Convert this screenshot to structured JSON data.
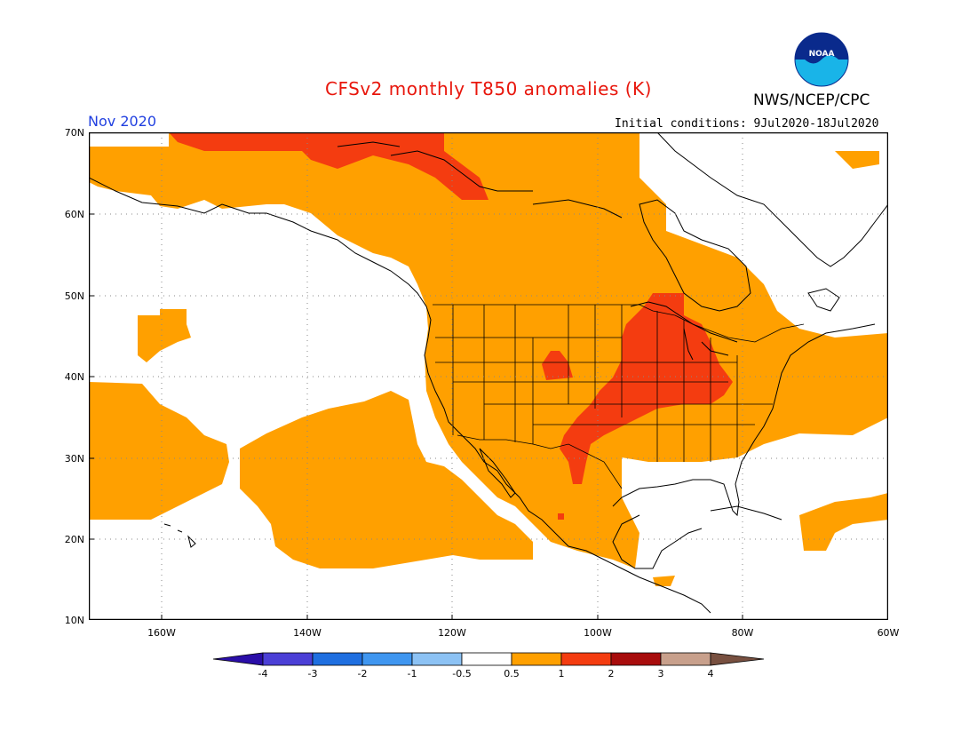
{
  "title": "CFSv2 monthly T850 anomalies (K)",
  "organization": "NWS/NCEP/CPC",
  "logo_text": "NOAA",
  "valid_month": "Nov 2020",
  "initial_conditions": "Initial conditions: 9Jul2020-18Jul2020",
  "map": {
    "lat_labels": [
      "70N",
      "60N",
      "50N",
      "40N",
      "30N",
      "20N",
      "10N"
    ],
    "lon_labels": [
      "160W",
      "140W",
      "120W",
      "100W",
      "80W",
      "60W"
    ],
    "lat_range": [
      10,
      70
    ],
    "lon_range": [
      -170,
      -60
    ],
    "gridlines": "dotted"
  },
  "colorbar": {
    "labels": [
      "-4",
      "-3",
      "-2",
      "-1",
      "-0.5",
      "0.5",
      "1",
      "2",
      "3",
      "4"
    ],
    "colors": [
      "#2a0ea8",
      "#4b3fd6",
      "#1f6fe0",
      "#3f96f0",
      "#8cc2f4",
      "#ffffff",
      "#ffa000",
      "#f43c10",
      "#a80c0c",
      "#c8a08c",
      "#785040"
    ]
  },
  "anomaly_colors": {
    "white": "#ffffff",
    "orange": "#ffa000",
    "red_orange": "#f43c10"
  }
}
